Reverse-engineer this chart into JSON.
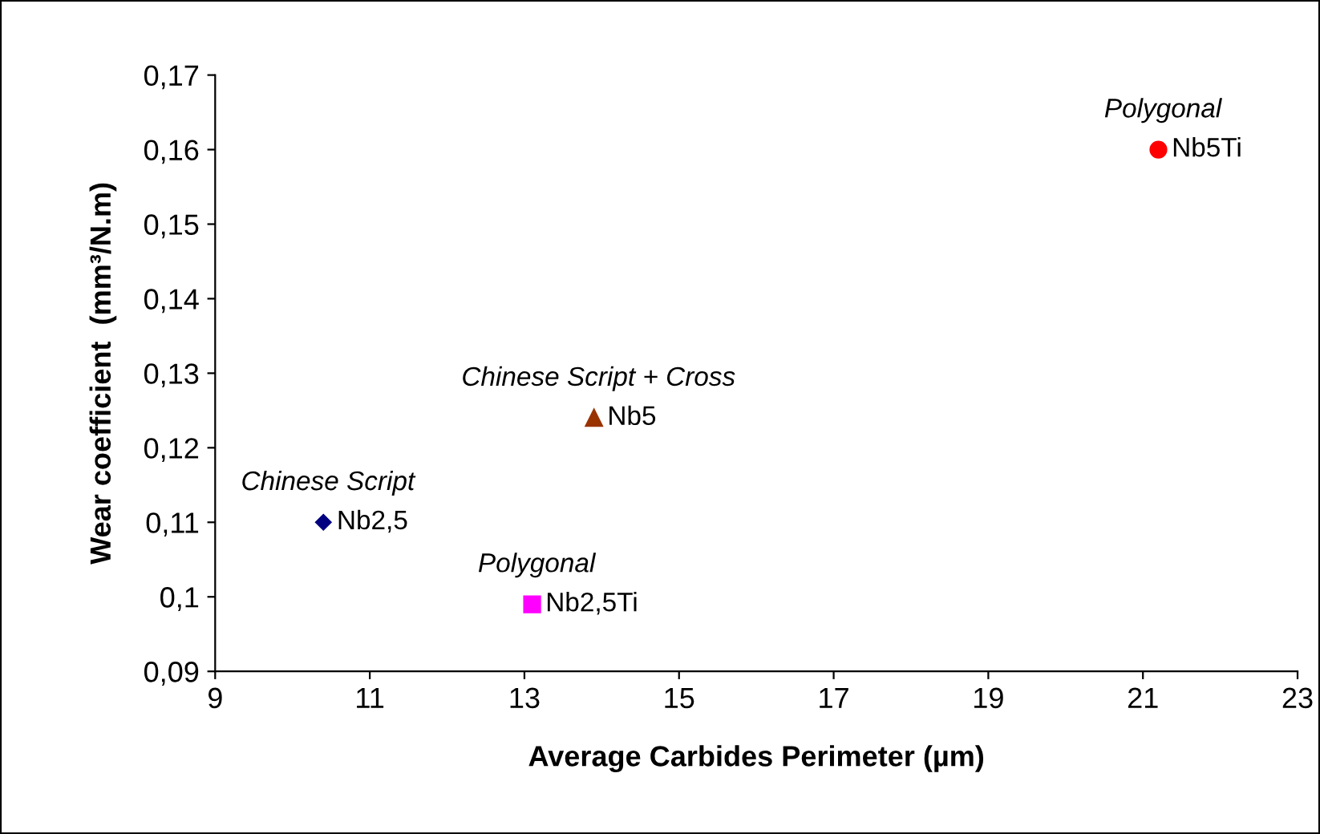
{
  "chart_data": {
    "type": "scatter",
    "xlabel": "Average Carbides Perimeter (µm)",
    "ylabel": "Wear coefficient  (mm³/N.m)",
    "xlim": [
      9,
      23
    ],
    "xticks": [
      9,
      11,
      13,
      15,
      17,
      19,
      21,
      23
    ],
    "ylim": [
      0.09,
      0.17
    ],
    "yticks": [
      {
        "value": 0.09,
        "label": "0,09"
      },
      {
        "value": 0.1,
        "label": "0,1"
      },
      {
        "value": 0.11,
        "label": "0,11"
      },
      {
        "value": 0.12,
        "label": "0,12"
      },
      {
        "value": 0.13,
        "label": "0,13"
      },
      {
        "value": 0.14,
        "label": "0,14"
      },
      {
        "value": 0.15,
        "label": "0,15"
      },
      {
        "value": 0.16,
        "label": "0,16"
      },
      {
        "value": 0.17,
        "label": "0,17"
      }
    ],
    "grid": false,
    "legend": false,
    "series": [
      {
        "name": "Nb2,5",
        "color": "#000080",
        "marker": "diamond",
        "x": [
          10.4
        ],
        "values": [
          0.11
        ]
      },
      {
        "name": "Nb2,5Ti",
        "color": "#ff00ff",
        "marker": "square",
        "x": [
          13.1
        ],
        "values": [
          0.099
        ]
      },
      {
        "name": "Nb5",
        "color": "#993300",
        "marker": "triangle",
        "x": [
          13.9
        ],
        "values": [
          0.124
        ]
      },
      {
        "name": "Nb5Ti",
        "color": "#ff0000",
        "marker": "circle",
        "x": [
          21.2
        ],
        "values": [
          0.16
        ]
      }
    ],
    "annotations": [
      {
        "text": "Chinese Script",
        "x": 10.4,
        "y": 0.11
      },
      {
        "text": "Polygonal",
        "x": 13.1,
        "y": 0.099
      },
      {
        "text": "Chinese Script + Cross",
        "x": 13.9,
        "y": 0.124
      },
      {
        "text": "Polygonal",
        "x": 21.2,
        "y": 0.16
      }
    ]
  }
}
